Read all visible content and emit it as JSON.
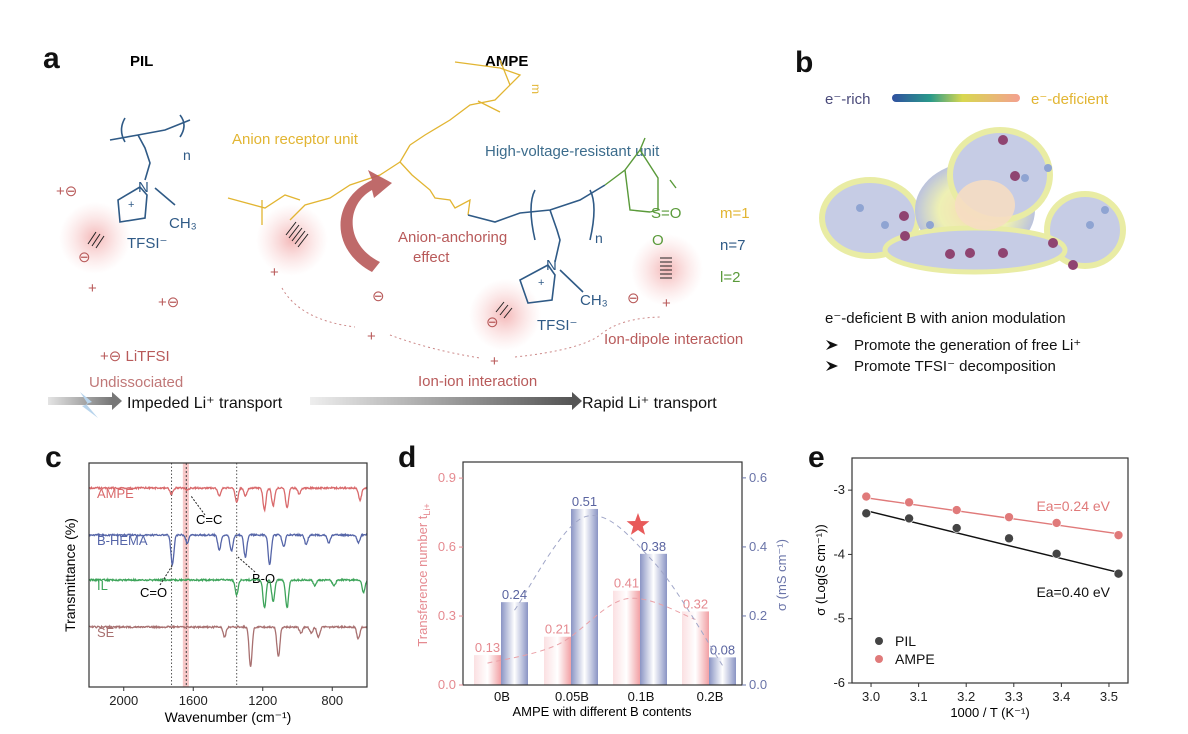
{
  "panels": {
    "a": {
      "letter": "a",
      "pil_title": "PIL",
      "ampe_title": "AMPE",
      "anion_receptor": "Anion receptor unit",
      "high_voltage": "High-voltage-resistant unit",
      "anchoring_line1": "Anion-anchoring",
      "anchoring_line2": "effect",
      "ion_ion": "Ion-ion interaction",
      "ion_dipole": "Ion-dipole interaction",
      "m": "m=1",
      "n": "n=7",
      "l": "l=2",
      "tfsi": "TFSI⁻",
      "ch3": "CH₃",
      "nitrogen": "N",
      "sub_n": "n",
      "sub_m": "m",
      "sub_l": "l",
      "litfsi": "+⊖ LiTFSI",
      "undissociated": "Undissociated",
      "impeded": "Impeded Li⁺ transport",
      "rapid": "Rapid Li⁺ transport",
      "plus_minus": "+⊖",
      "minus": "⊖",
      "plus": "+",
      "s_group": "S=O",
      "oxygen": "O",
      "colors": {
        "yellow": "#e2b532",
        "blue": "#2f5a86",
        "green": "#5a9a3a",
        "red": "#b85a5a",
        "teal": "#3c6c8c"
      }
    },
    "b": {
      "letter": "b",
      "rich": "e⁻-rich",
      "deficient": "e⁻-deficient",
      "headline": "e⁻-deficient B with anion modulation",
      "bullets": [
        "Promote the generation of free Li⁺",
        "Promote TFSI⁻ decomposition"
      ],
      "bullet_icon": "arrowhead-bullet"
    }
  },
  "chart_data": [
    {
      "panel": "c",
      "letter": "c",
      "type": "line",
      "xlabel": "Wavenumber (cm⁻¹)",
      "ylabel": "Transmittance (%)",
      "xlim": [
        2200,
        600
      ],
      "xticks": [
        2000,
        1600,
        1200,
        800
      ],
      "grid": false,
      "series": [
        {
          "name": "AMPE",
          "color": "#d9696b",
          "dips": [
            [
              1725,
              6
            ],
            [
              1635,
              2
            ],
            [
              1450,
              8
            ],
            [
              1350,
              14
            ],
            [
              1300,
              8
            ],
            [
              1190,
              22
            ],
            [
              1140,
              18
            ],
            [
              1060,
              20
            ],
            [
              990,
              6
            ],
            [
              640,
              12
            ]
          ]
        },
        {
          "name": "B-HEMA",
          "color": "#5565a8",
          "dips": [
            [
              1720,
              30
            ],
            [
              1635,
              8
            ],
            [
              1450,
              15
            ],
            [
              1380,
              16
            ],
            [
              1300,
              22
            ],
            [
              1160,
              30
            ],
            [
              1080,
              12
            ],
            [
              950,
              10
            ],
            [
              820,
              8
            ],
            [
              650,
              8
            ]
          ]
        },
        {
          "name": "IL",
          "color": "#3da45a",
          "dips": [
            [
              1350,
              15
            ],
            [
              1190,
              28
            ],
            [
              1140,
              22
            ],
            [
              1060,
              28
            ],
            [
              900,
              6
            ],
            [
              790,
              6
            ],
            [
              620,
              12
            ]
          ]
        },
        {
          "name": "SE",
          "color": "#a87070",
          "dips": [
            [
              1420,
              10
            ],
            [
              1270,
              40
            ],
            [
              1110,
              30
            ],
            [
              980,
              6
            ],
            [
              920,
              6
            ],
            [
              880,
              10
            ],
            [
              650,
              12
            ]
          ]
        }
      ],
      "annotations": [
        "C=C",
        "C=O",
        "B-O"
      ],
      "marker_lines": [
        1725,
        1350
      ],
      "highlight_band": [
        1660,
        1625
      ]
    },
    {
      "panel": "d",
      "letter": "d",
      "type": "bar",
      "xlabel": "AMPE with different B contents",
      "ylabel_left": "Transference number t",
      "ylabel_left_sub": "Li+",
      "ylabel_right": "σ (mS cm⁻¹)",
      "categories": [
        "0B",
        "0.05B",
        "0.1B",
        "0.2B"
      ],
      "ylim_left": [
        0,
        0.97
      ],
      "ylim_right": [
        0,
        0.646
      ],
      "yticks_left": [
        "0.0",
        "0.3",
        "0.6",
        "0.9"
      ],
      "yticks_right": [
        "0.0",
        "0.2",
        "0.4",
        "0.6"
      ],
      "series": [
        {
          "axis": "left",
          "color": "#f2a0a4",
          "values": [
            0.13,
            0.21,
            0.41,
            0.32
          ]
        },
        {
          "axis": "right",
          "color": "#8a94c4",
          "values": [
            0.24,
            0.51,
            0.38,
            0.08
          ]
        }
      ],
      "highlight": "0.1B",
      "star_color": "#e85a5a"
    },
    {
      "panel": "e",
      "letter": "e",
      "type": "scatter",
      "xlabel": "1000 / T (K⁻¹)",
      "ylabel": "σ (Log(S cm⁻¹))",
      "xlim": [
        2.96,
        3.54
      ],
      "ylim": [
        -6,
        -2.5
      ],
      "xticks": [
        "3.0",
        "3.1",
        "3.2",
        "3.3",
        "3.4",
        "3.5"
      ],
      "yticks": [
        "-3",
        "-4",
        "-5",
        "-6"
      ],
      "legend": "bottom-left",
      "series": [
        {
          "name": "PIL",
          "color": "#444444",
          "x": [
            2.99,
            3.08,
            3.18,
            3.29,
            3.39,
            3.52
          ],
          "y": [
            -3.36,
            -3.44,
            -3.59,
            -3.75,
            -3.99,
            -4.3
          ],
          "fit_label": "Ea=0.40 eV",
          "fit": [
            [
              2.99,
              -3.32
            ],
            [
              3.52,
              -4.28
            ]
          ]
        },
        {
          "name": "AMPE",
          "color": "#e07a7a",
          "x": [
            2.99,
            3.08,
            3.18,
            3.29,
            3.39,
            3.52
          ],
          "y": [
            -3.1,
            -3.19,
            -3.31,
            -3.42,
            -3.51,
            -3.7
          ],
          "fit_label": "Ea=0.24 eV",
          "fit": [
            [
              2.99,
              -3.12
            ],
            [
              3.52,
              -3.68
            ]
          ]
        }
      ]
    }
  ]
}
